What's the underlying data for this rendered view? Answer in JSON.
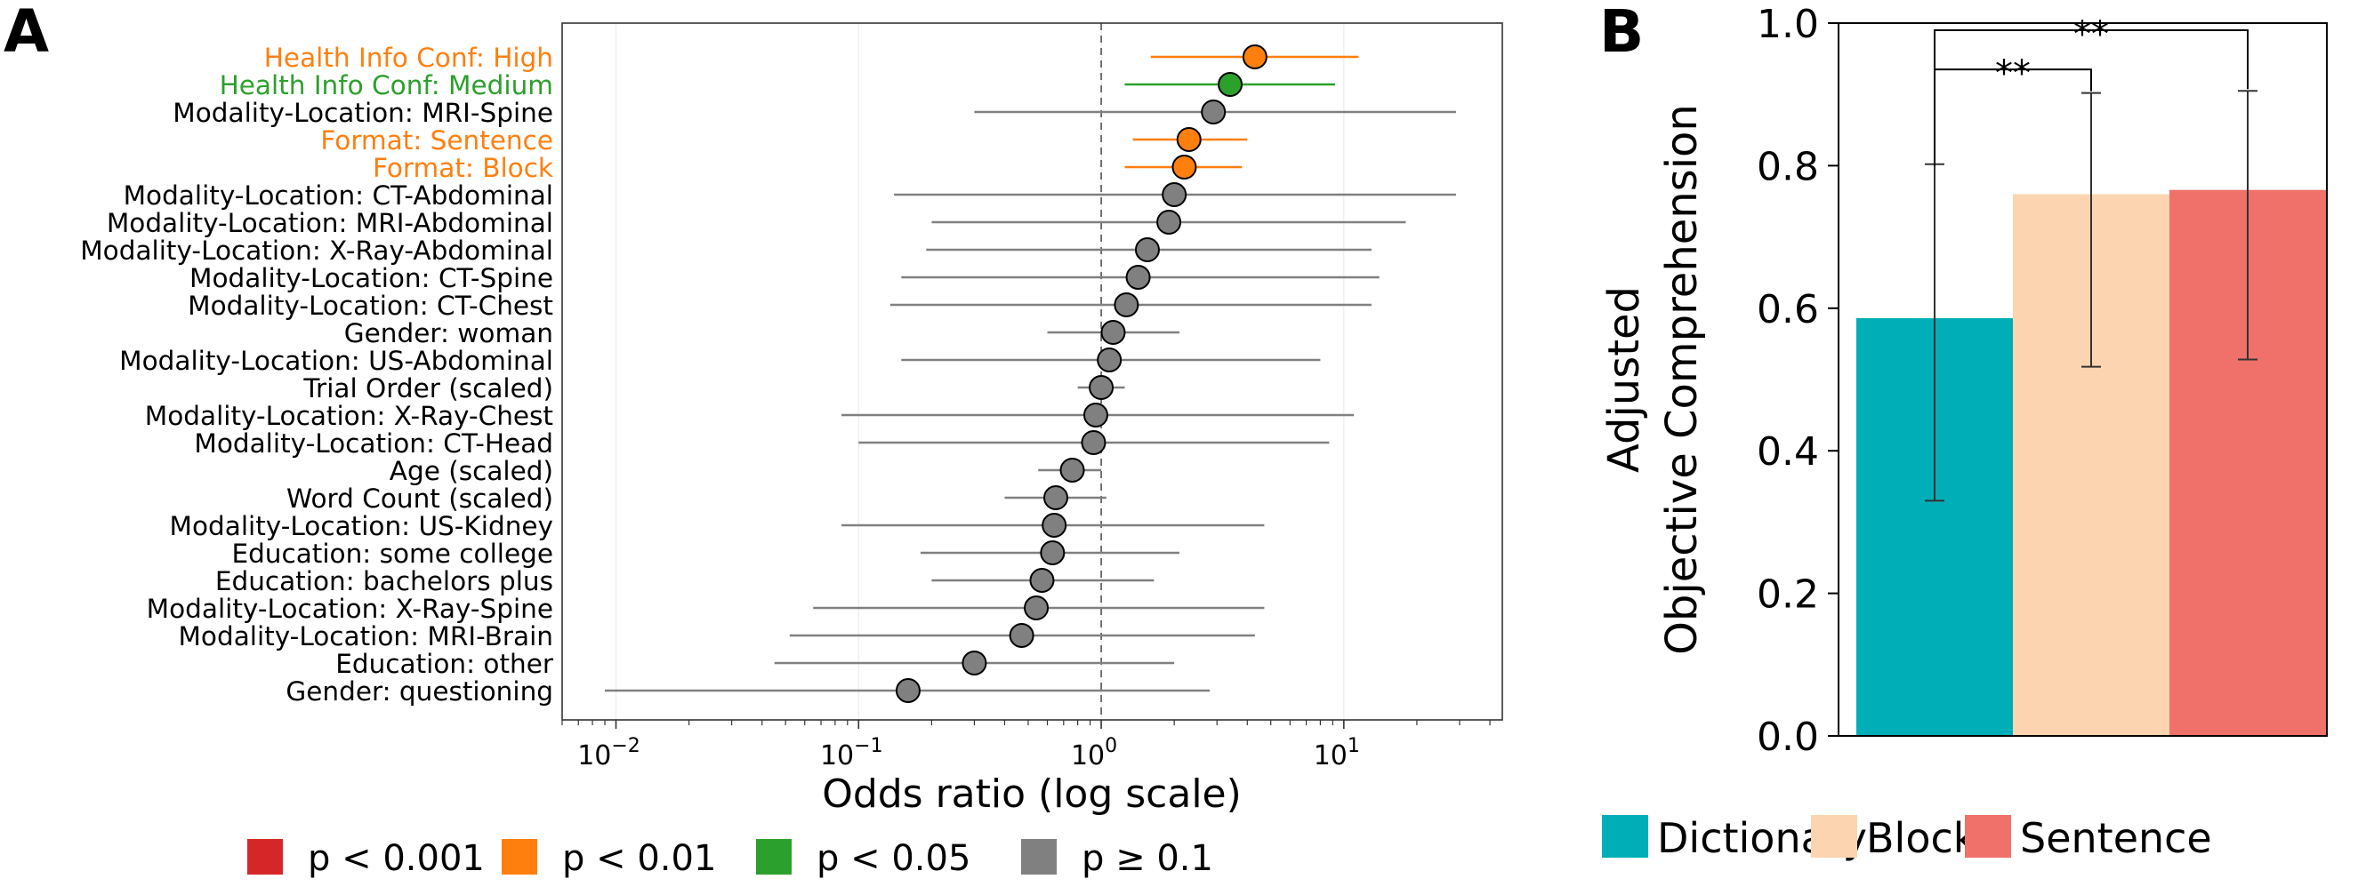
{
  "colors": {
    "p001": "#d62728",
    "p01": "#ff7f0e",
    "p05": "#2ca02c",
    "pns": "#808080",
    "dictionary": "#00aeb8",
    "block": "#fcd5b0",
    "sentence": "#f0706a"
  },
  "chart_data": [
    {
      "panel_label": "A",
      "type": "scatter",
      "title": "",
      "xlabel": "Odds ratio (log scale)",
      "ylabel": "",
      "xscale": "log",
      "xlim": [
        0.006,
        45
      ],
      "reference_line": 1,
      "x_ticks": [
        {
          "value": 0.01,
          "base": "10",
          "exp": "−2"
        },
        {
          "value": 0.1,
          "base": "10",
          "exp": "−1"
        },
        {
          "value": 1,
          "base": "10",
          "exp": "0"
        },
        {
          "value": 10,
          "base": "10",
          "exp": "1"
        }
      ],
      "points": [
        {
          "label": "Health Info Conf: High",
          "or": 4.3,
          "lo": 1.6,
          "hi": 11.5,
          "sig": "p01"
        },
        {
          "label": "Health Info Conf: Medium",
          "or": 3.4,
          "lo": 1.25,
          "hi": 9.2,
          "sig": "p05"
        },
        {
          "label": "Modality-Location: MRI-Spine",
          "or": 2.9,
          "lo": 0.3,
          "hi": 29,
          "sig": "pns"
        },
        {
          "label": "Format: Sentence",
          "or": 2.3,
          "lo": 1.35,
          "hi": 4.0,
          "sig": "p01"
        },
        {
          "label": "Format: Block",
          "or": 2.2,
          "lo": 1.25,
          "hi": 3.8,
          "sig": "p01"
        },
        {
          "label": "Modality-Location: CT-Abdominal",
          "or": 2.0,
          "lo": 0.14,
          "hi": 29,
          "sig": "pns"
        },
        {
          "label": "Modality-Location: MRI-Abdominal",
          "or": 1.9,
          "lo": 0.2,
          "hi": 18,
          "sig": "pns"
        },
        {
          "label": "Modality-Location: X-Ray-Abdominal",
          "or": 1.55,
          "lo": 0.19,
          "hi": 13,
          "sig": "pns"
        },
        {
          "label": "Modality-Location: CT-Spine",
          "or": 1.42,
          "lo": 0.15,
          "hi": 14,
          "sig": "pns"
        },
        {
          "label": "Modality-Location: CT-Chest",
          "or": 1.27,
          "lo": 0.135,
          "hi": 13,
          "sig": "pns"
        },
        {
          "label": "Gender: woman",
          "or": 1.12,
          "lo": 0.6,
          "hi": 2.1,
          "sig": "pns"
        },
        {
          "label": "Modality-Location: US-Abdominal",
          "or": 1.08,
          "lo": 0.15,
          "hi": 8,
          "sig": "pns"
        },
        {
          "label": "Trial Order (scaled)",
          "or": 1.0,
          "lo": 0.8,
          "hi": 1.25,
          "sig": "pns"
        },
        {
          "label": "Modality-Location: X-Ray-Chest",
          "or": 0.95,
          "lo": 0.085,
          "hi": 11,
          "sig": "pns"
        },
        {
          "label": "Modality-Location: CT-Head",
          "or": 0.93,
          "lo": 0.1,
          "hi": 8.7,
          "sig": "pns"
        },
        {
          "label": "Age (scaled)",
          "or": 0.76,
          "lo": 0.55,
          "hi": 1.0,
          "sig": "pns"
        },
        {
          "label": "Word Count (scaled)",
          "or": 0.65,
          "lo": 0.4,
          "hi": 1.05,
          "sig": "pns"
        },
        {
          "label": "Modality-Location: US-Kidney",
          "or": 0.64,
          "lo": 0.085,
          "hi": 4.7,
          "sig": "pns"
        },
        {
          "label": "Education: some college",
          "or": 0.63,
          "lo": 0.18,
          "hi": 2.1,
          "sig": "pns"
        },
        {
          "label": "Education: bachelors plus",
          "or": 0.57,
          "lo": 0.2,
          "hi": 1.65,
          "sig": "pns"
        },
        {
          "label": "Modality-Location: X-Ray-Spine",
          "or": 0.54,
          "lo": 0.065,
          "hi": 4.7,
          "sig": "pns"
        },
        {
          "label": "Modality-Location: MRI-Brain",
          "or": 0.47,
          "lo": 0.052,
          "hi": 4.3,
          "sig": "pns"
        },
        {
          "label": "Education: other",
          "or": 0.3,
          "lo": 0.045,
          "hi": 2.0,
          "sig": "pns"
        },
        {
          "label": "Gender: questioning",
          "or": 0.16,
          "lo": 0.009,
          "hi": 2.8,
          "sig": "pns"
        }
      ],
      "legend": [
        {
          "label": "p < 0.001",
          "sig": "p001"
        },
        {
          "label": "p < 0.01",
          "sig": "p01"
        },
        {
          "label": "p < 0.05",
          "sig": "p05"
        },
        {
          "label": "p ≥ 0.1",
          "sig": "pns"
        }
      ],
      "legend_position": "bottom"
    },
    {
      "panel_label": "B",
      "type": "bar",
      "title": "",
      "xlabel": "",
      "ylabel": [
        "Adjusted",
        "Objective Comprehension"
      ],
      "ylim": [
        0,
        1.0
      ],
      "y_ticks": [
        "0.0",
        "0.2",
        "0.4",
        "0.6",
        "0.8",
        "1.0"
      ],
      "categories": [
        "Dictionary",
        "Block",
        "Sentence"
      ],
      "values": [
        0.586,
        0.76,
        0.766
      ],
      "err_low": [
        0.33,
        0.518,
        0.528
      ],
      "err_high": [
        0.802,
        0.902,
        0.905
      ],
      "brackets": [
        {
          "from": 0,
          "to": 1,
          "y": 0.935,
          "label": "**"
        },
        {
          "from": 0,
          "to": 2,
          "y": 0.99,
          "label": "**"
        }
      ],
      "legend": [
        "Dictionary",
        "Block",
        "Sentence"
      ],
      "legend_position": "bottom"
    }
  ]
}
